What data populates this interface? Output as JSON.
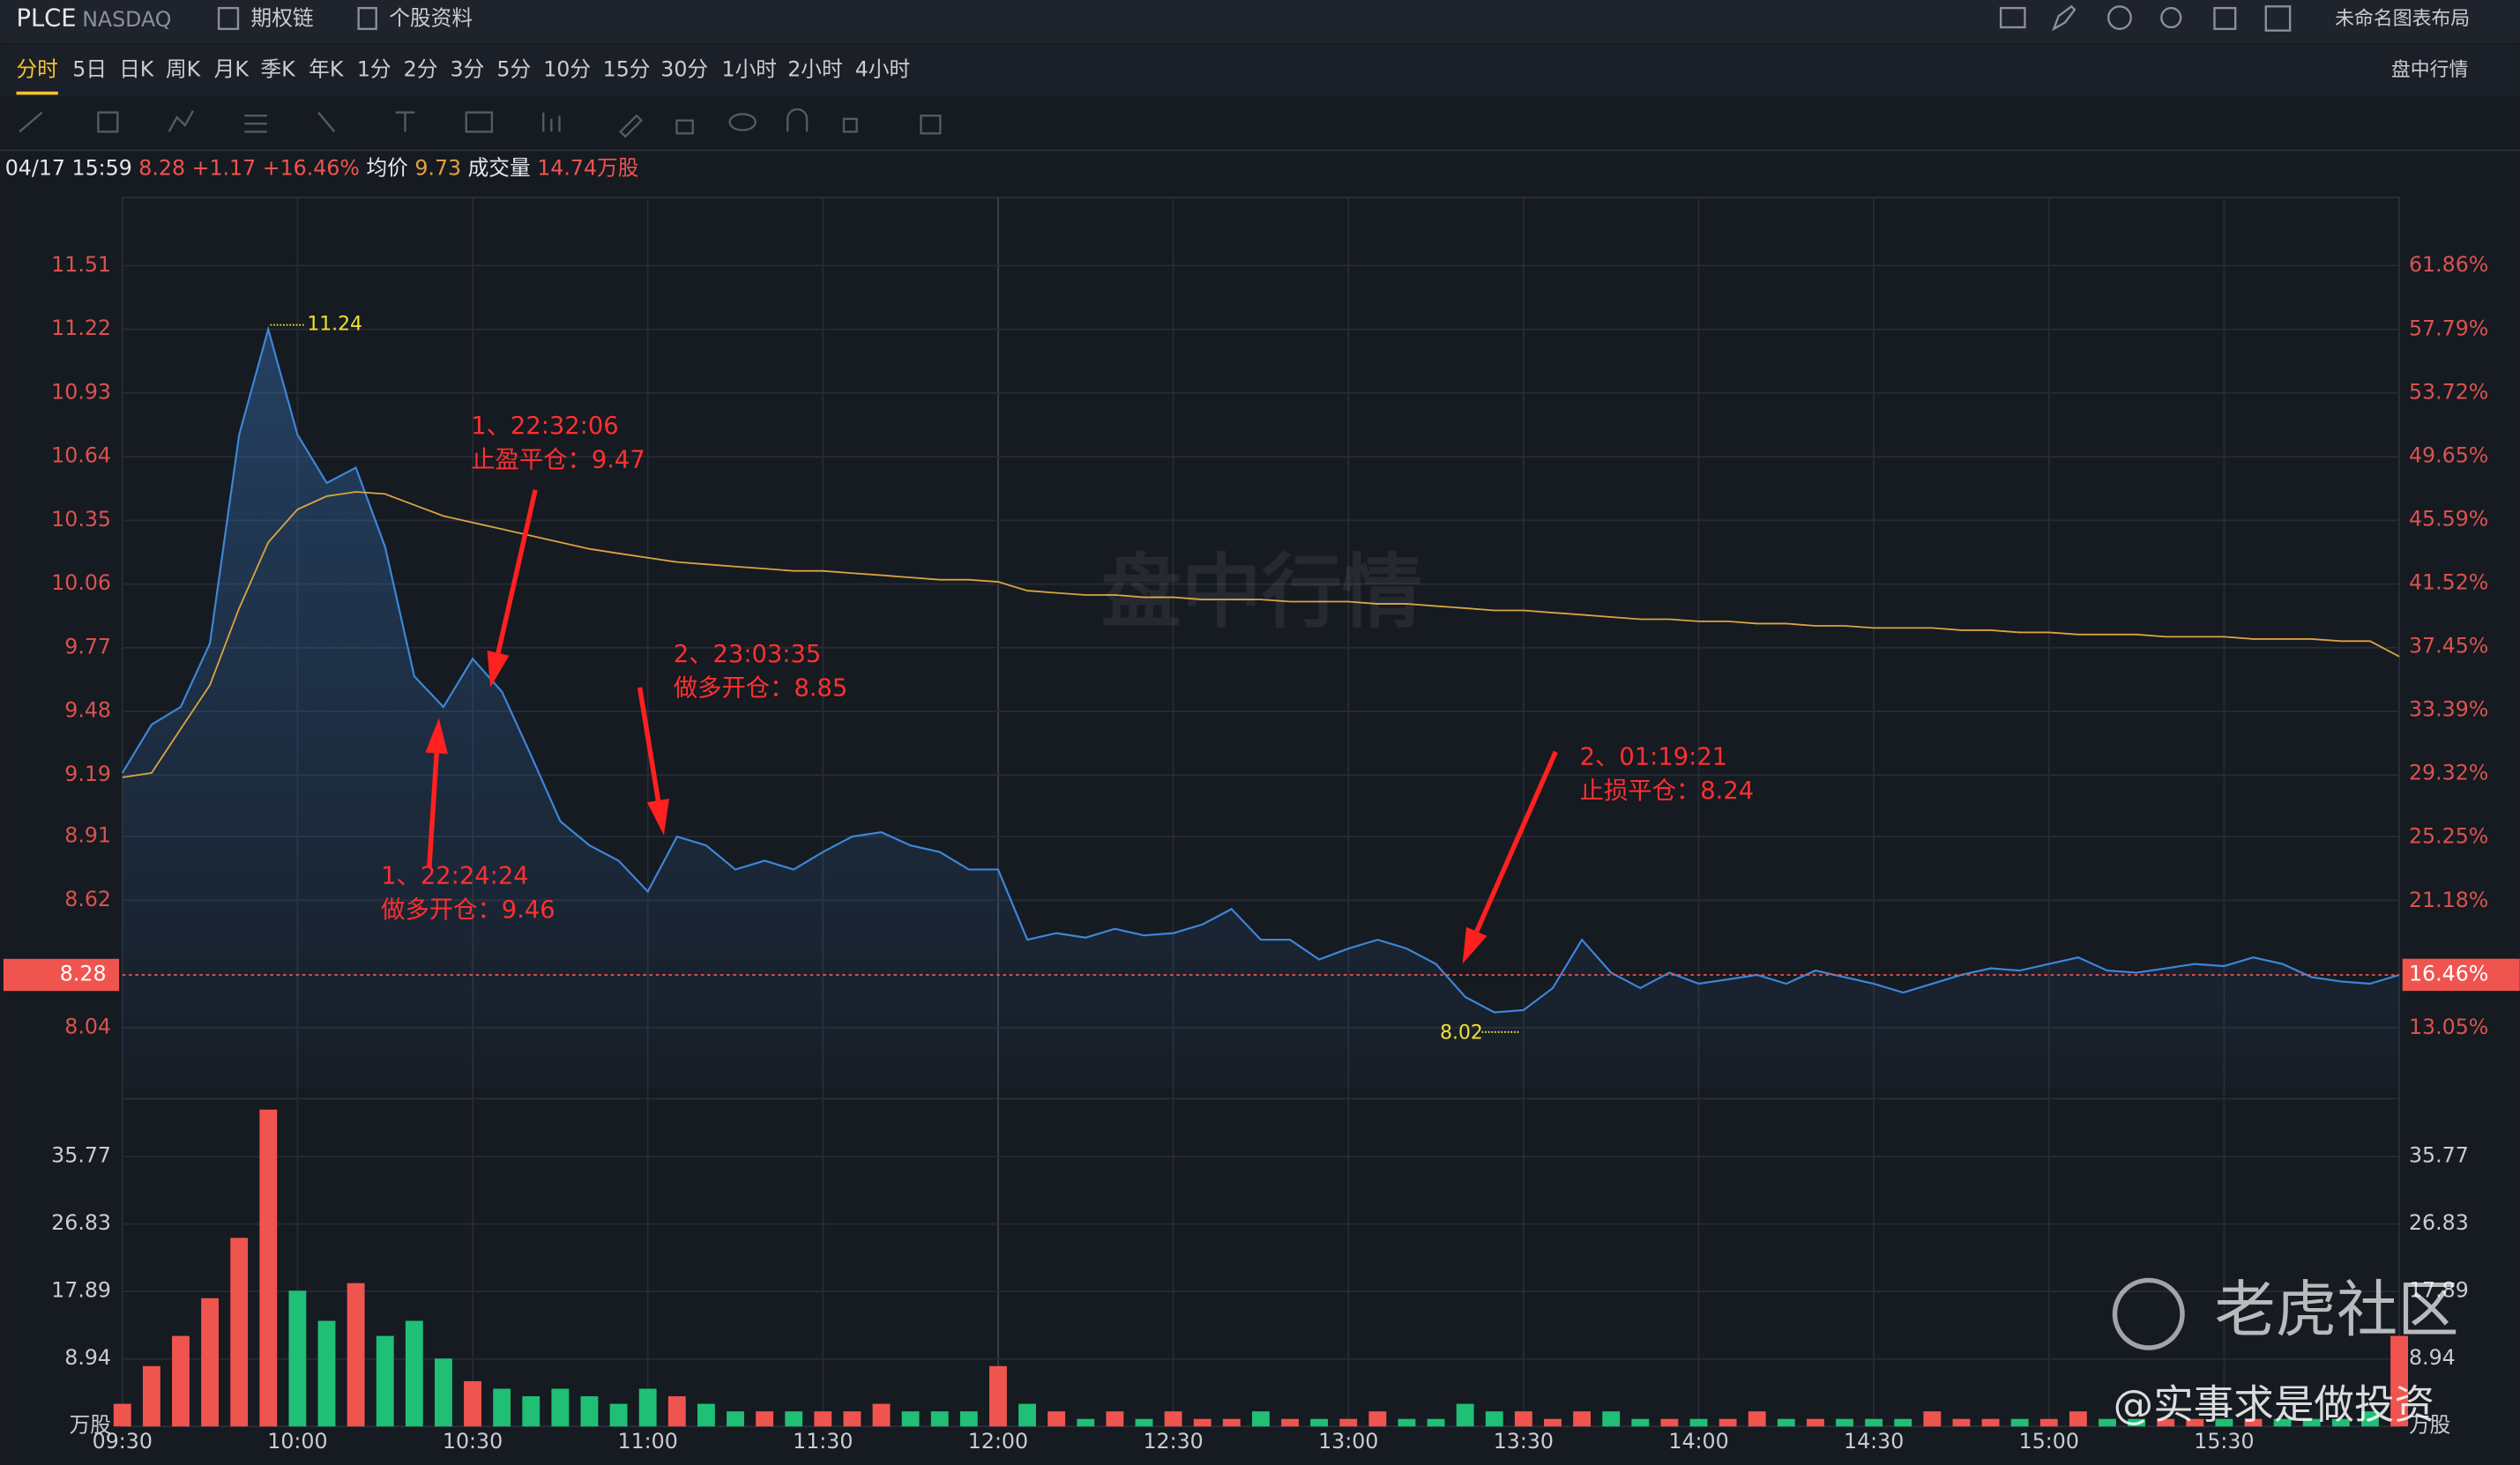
{
  "header": {
    "ticker": "PLCE",
    "exchange": "NASDAQ",
    "links": [
      "期权链",
      "个股资料"
    ],
    "layout": "未命名图表布局"
  },
  "periods": [
    "分时",
    "5日",
    "日K",
    "周K",
    "月K",
    "季K",
    "年K",
    "1分",
    "2分",
    "3分",
    "5分",
    "10分",
    "15分",
    "30分",
    "1小时",
    "2小时",
    "4小时"
  ],
  "view": "盘中行情",
  "info": {
    "datetime": "04/17 15:59",
    "price": "8.28",
    "change": "+1.17",
    "pct": "+16.46%",
    "avg_label": "均价",
    "avg": "9.73",
    "vol_label": "成交量",
    "vol": "14.74万股"
  },
  "watermark": "盘中行情",
  "brand": "老虎社区",
  "author": "@实事求是做投资",
  "chart_data": [
    {
      "type": "line",
      "x": [
        "09:30",
        "09:35",
        "09:40",
        "09:45",
        "09:50",
        "09:55",
        "10:00",
        "10:05",
        "10:10",
        "10:15",
        "10:20",
        "10:25",
        "10:30",
        "10:35",
        "10:40",
        "10:45",
        "10:50",
        "10:55",
        "11:00",
        "11:05",
        "11:10",
        "11:15",
        "11:20",
        "11:25",
        "11:30",
        "11:35",
        "11:40",
        "11:45",
        "11:50",
        "11:55",
        "12:00",
        "12:05",
        "12:10",
        "12:15",
        "12:20",
        "12:25",
        "12:30",
        "12:35",
        "12:40",
        "12:45",
        "12:50",
        "12:55",
        "13:00",
        "13:05",
        "13:10",
        "13:15",
        "13:20",
        "13:25",
        "13:30",
        "13:35",
        "13:40",
        "13:45",
        "13:50",
        "13:55",
        "14:00",
        "14:05",
        "14:10",
        "14:15",
        "14:20",
        "14:25",
        "14:30",
        "14:35",
        "14:40",
        "14:45",
        "14:50",
        "14:55",
        "15:00",
        "15:05",
        "15:10",
        "15:15",
        "15:20",
        "15:25",
        "15:30",
        "15:35",
        "15:40",
        "15:45",
        "15:50",
        "15:55",
        "16:00"
      ],
      "series": [
        {
          "color": "#3d86d8",
          "values": [
            9.2,
            9.42,
            9.5,
            9.79,
            10.74,
            11.22,
            10.74,
            10.52,
            10.59,
            10.23,
            9.64,
            9.5,
            9.72,
            9.57,
            9.28,
            8.98,
            8.87,
            8.8,
            8.66,
            8.91,
            8.87,
            8.76,
            8.8,
            8.76,
            8.84,
            8.91,
            8.93,
            8.87,
            8.84,
            8.76,
            8.76,
            8.44,
            8.47,
            8.45,
            8.49,
            8.46,
            8.47,
            8.51,
            8.58,
            8.44,
            8.44,
            8.35,
            8.4,
            8.44,
            8.4,
            8.33,
            8.18,
            8.11,
            8.12,
            8.22,
            8.44,
            8.29,
            8.22,
            8.29,
            8.24,
            8.26,
            8.28,
            8.24,
            8.3,
            8.27,
            8.24,
            8.2,
            8.24,
            8.28,
            8.31,
            8.3,
            8.33,
            8.36,
            8.3,
            8.29,
            8.31,
            8.33,
            8.32,
            8.36,
            8.33,
            8.27,
            8.25,
            8.24,
            8.28
          ]
        },
        {
          "color": "#d9a441",
          "values": [
            9.18,
            9.2,
            9.4,
            9.6,
            9.95,
            10.25,
            10.4,
            10.46,
            10.48,
            10.47,
            10.42,
            10.37,
            10.34,
            10.31,
            10.28,
            10.25,
            10.22,
            10.2,
            10.18,
            10.16,
            10.15,
            10.14,
            10.13,
            10.12,
            10.12,
            10.11,
            10.1,
            10.09,
            10.08,
            10.08,
            10.07,
            10.03,
            10.02,
            10.01,
            10.01,
            10.0,
            10.0,
            9.99,
            9.99,
            9.99,
            9.98,
            9.98,
            9.98,
            9.97,
            9.97,
            9.96,
            9.95,
            9.94,
            9.94,
            9.93,
            9.92,
            9.91,
            9.9,
            9.9,
            9.89,
            9.89,
            9.88,
            9.88,
            9.87,
            9.87,
            9.86,
            9.86,
            9.86,
            9.85,
            9.85,
            9.84,
            9.84,
            9.83,
            9.83,
            9.83,
            9.82,
            9.82,
            9.82,
            9.81,
            9.81,
            9.81,
            9.8,
            9.8,
            9.73
          ]
        }
      ],
      "ylim": [
        7.76,
        11.82
      ],
      "yticks": [
        11.51,
        11.22,
        10.93,
        10.64,
        10.35,
        10.06,
        9.77,
        9.48,
        9.19,
        8.91,
        8.62,
        8.04
      ],
      "y2lim": [
        9.14,
        66.24
      ],
      "y2ticks": [
        {
          "value": 61.86,
          "label": "61.86%"
        },
        {
          "value": 57.79,
          "label": "57.79%"
        },
        {
          "value": 53.72,
          "label": "53.72%"
        },
        {
          "value": 49.65,
          "label": "49.65%"
        },
        {
          "value": 45.59,
          "label": "45.59%"
        },
        {
          "value": 41.52,
          "label": "41.52%"
        },
        {
          "value": 37.45,
          "label": "37.45%"
        },
        {
          "value": 33.39,
          "label": "33.39%"
        },
        {
          "value": 29.32,
          "label": "29.32%"
        },
        {
          "value": 25.25,
          "label": "25.25%"
        },
        {
          "value": 21.18,
          "label": "21.18%"
        },
        {
          "value": 13.05,
          "label": "13.05%"
        }
      ],
      "last_price": 8.28,
      "last_pct": {
        "value": 16.46,
        "label": "16.46%"
      },
      "high": 11.24,
      "low": 8.02,
      "annotations": [
        {
          "lines": [
            "1、22:32:06",
            "止盈平仓：9.47"
          ]
        },
        {
          "lines": [
            "2、23:03:35",
            "做多开仓：8.85"
          ]
        },
        {
          "lines": [
            "2、01:19:21",
            "止损平仓：8.24"
          ]
        },
        {
          "lines": [
            "1、22:24:24",
            "做多开仓：9.46"
          ]
        }
      ],
      "grid": true
    },
    {
      "type": "bar",
      "unit": "万股",
      "x": [
        "09:30",
        "09:35",
        "09:40",
        "09:45",
        "09:50",
        "09:55",
        "10:00",
        "10:05",
        "10:10",
        "10:15",
        "10:20",
        "10:25",
        "10:30",
        "10:35",
        "10:40",
        "10:45",
        "10:50",
        "10:55",
        "11:00",
        "11:05",
        "11:10",
        "11:15",
        "11:20",
        "11:25",
        "11:30",
        "11:35",
        "11:40",
        "11:45",
        "11:50",
        "11:55",
        "12:00",
        "12:05",
        "12:10",
        "12:15",
        "12:20",
        "12:25",
        "12:30",
        "12:35",
        "12:40",
        "12:45",
        "12:50",
        "12:55",
        "13:00",
        "13:05",
        "13:10",
        "13:15",
        "13:20",
        "13:25",
        "13:30",
        "13:35",
        "13:40",
        "13:45",
        "13:50",
        "13:55",
        "14:00",
        "14:05",
        "14:10",
        "14:15",
        "14:20",
        "14:25",
        "14:30",
        "14:35",
        "14:40",
        "14:45",
        "14:50",
        "14:55",
        "15:00",
        "15:05",
        "15:10",
        "15:15",
        "15:20",
        "15:25",
        "15:30",
        "15:35",
        "15:40",
        "15:45",
        "15:50",
        "15:55",
        "16:00"
      ],
      "values": [
        3,
        8,
        12,
        17,
        25,
        42,
        18,
        14,
        19,
        12,
        14,
        9,
        6,
        5,
        4,
        5,
        4,
        3,
        5,
        4,
        3,
        2,
        2,
        2,
        2,
        2,
        3,
        2,
        2,
        2,
        8,
        3,
        2,
        1,
        2,
        1,
        2,
        1,
        1,
        2,
        1,
        1,
        1,
        2,
        1,
        1,
        3,
        2,
        2,
        1,
        2,
        2,
        1,
        1,
        1,
        1,
        2,
        1,
        1,
        1,
        1,
        1,
        2,
        1,
        1,
        1,
        1,
        2,
        1,
        1,
        1,
        1,
        1,
        1,
        1,
        1,
        1,
        2,
        12
      ],
      "up_color": "#f0544f",
      "down_color": "#1fbf75",
      "ylim": [
        0,
        42.16
      ],
      "yticks": [
        8.94,
        17.89,
        26.83,
        35.77
      ],
      "xticks": [
        "09:30",
        "10:00",
        "10:30",
        "11:00",
        "11:30",
        "12:00",
        "12:30",
        "13:00",
        "13:30",
        "14:00",
        "14:30",
        "15:00",
        "15:30"
      ]
    }
  ]
}
